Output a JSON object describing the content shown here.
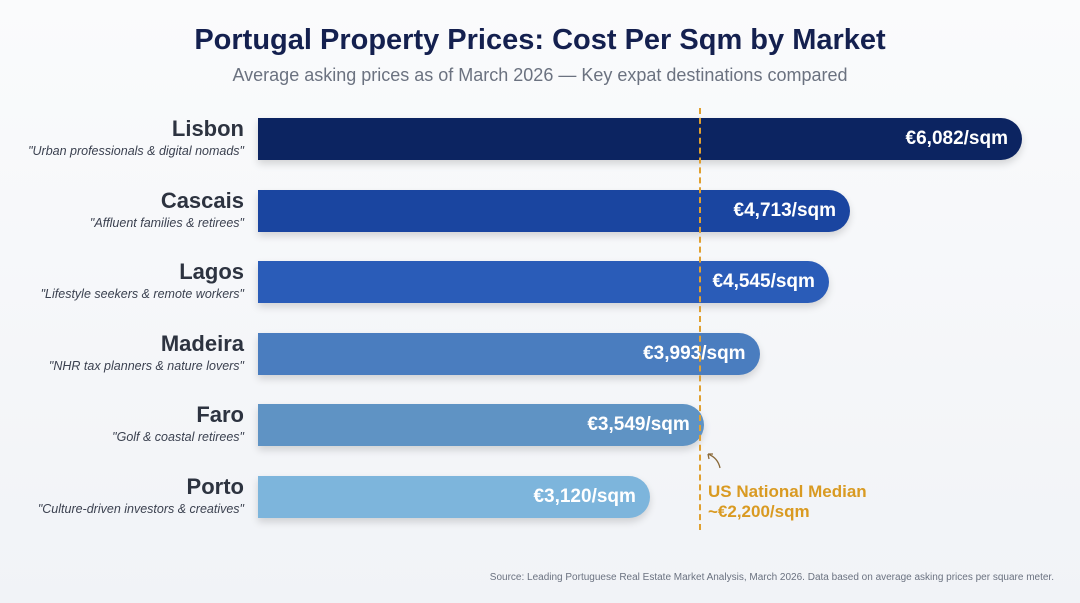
{
  "chart_data": {
    "type": "bar",
    "orientation": "horizontal",
    "title": "Portugal Property Prices: Cost Per Sqm by Market",
    "subtitle": "Average asking prices as of March 2026 — Key expat destinations compared",
    "categories": [
      "Lisbon",
      "Cascais",
      "Lagos",
      "Madeira",
      "Faro",
      "Porto"
    ],
    "descriptions": [
      "\"Urban professionals & digital nomads\"",
      "\"Affluent families & retirees\"",
      "\"Lifestyle seekers & remote workers\"",
      "\"NHR tax planners & nature lovers\"",
      "\"Golf & coastal retirees\"",
      "\"Culture-driven investors & creatives\""
    ],
    "values": [
      6082,
      4713,
      4545,
      3993,
      3549,
      3120
    ],
    "value_labels": [
      "€6,082/sqm",
      "€4,713/sqm",
      "€4,545/sqm",
      "€3,993/sqm",
      "€3,549/sqm",
      "€3,120/sqm"
    ],
    "colors": [
      "#0c2461",
      "#1a45a0",
      "#2a5cb8",
      "#4a7dbf",
      "#5f93c4",
      "#7db5dc"
    ],
    "reference_line": {
      "value": 2200,
      "label_line1": "US National Median",
      "label_line2": "~€2,200/sqm",
      "color": "#d99a22"
    },
    "source": "Source: Leading Portuguese Real Estate Market Analysis, March 2026. Data based on average asking prices per square meter.",
    "xlim": [
      0,
      6082
    ],
    "grid": false,
    "legend": "none"
  }
}
